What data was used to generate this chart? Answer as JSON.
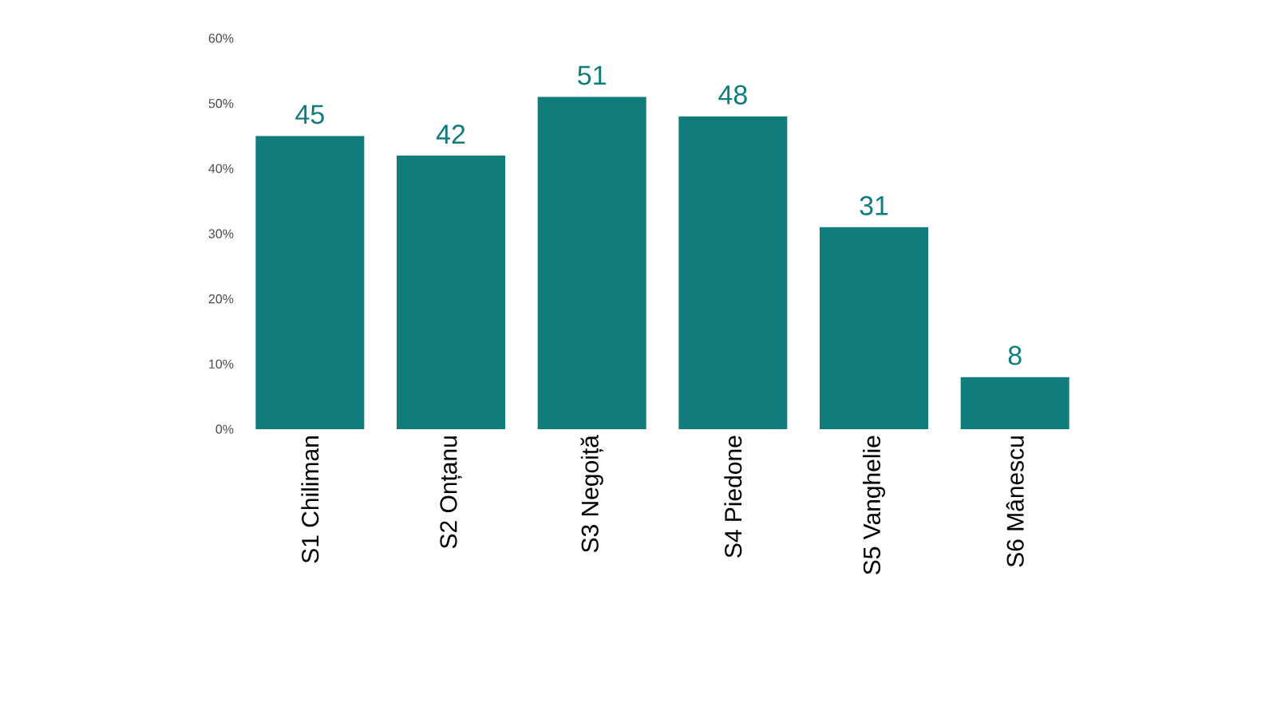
{
  "chart_data": {
    "type": "bar",
    "categories": [
      "S1 Chiliman",
      "S2 Onțanu",
      "S3 Negoiță",
      "S4 Piedone",
      "S5 Vanghelie",
      "S6 Mânescu"
    ],
    "values": [
      45,
      42,
      51,
      48,
      31,
      8
    ],
    "color": "#107c7c",
    "data_labels": true,
    "grid": false,
    "ylim": [
      0,
      60
    ],
    "yticks": [
      {
        "value": 0,
        "label": "0%"
      },
      {
        "value": 10,
        "label": "10%"
      },
      {
        "value": 20,
        "label": "20%"
      },
      {
        "value": 30,
        "label": "30%"
      },
      {
        "value": 40,
        "label": "40%"
      },
      {
        "value": 50,
        "label": "50%"
      },
      {
        "value": 60,
        "label": "60%"
      }
    ]
  }
}
